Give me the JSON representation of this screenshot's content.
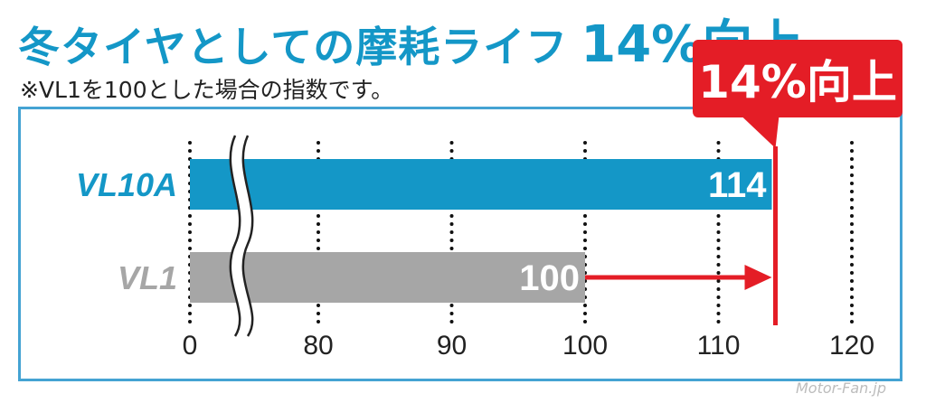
{
  "title": {
    "main": "冬タイヤとしての摩耗ライフ",
    "highlight": "14%向上"
  },
  "note": "※VL1を100とした場合の指数です。",
  "callout": "14%向上",
  "watermark": "Motor-Fan.jp",
  "colors": {
    "brand": "#1497c7",
    "highlight": "#e41d26",
    "base": "#a6a6a6"
  },
  "chart_data": {
    "type": "bar",
    "orientation": "horizontal",
    "categories": [
      "VL10A",
      "VL1"
    ],
    "values": [
      114,
      100
    ],
    "data_labels": [
      "114",
      "100"
    ],
    "x_ticks": [
      0,
      80,
      90,
      100,
      110,
      120
    ],
    "axis_break": {
      "between": [
        0,
        80
      ]
    },
    "xlim": [
      0,
      120
    ],
    "reference_line": 114,
    "arrow": {
      "from": 100,
      "to": 114
    },
    "grid": true,
    "colors": [
      "#1497c7",
      "#a6a6a6"
    ]
  }
}
